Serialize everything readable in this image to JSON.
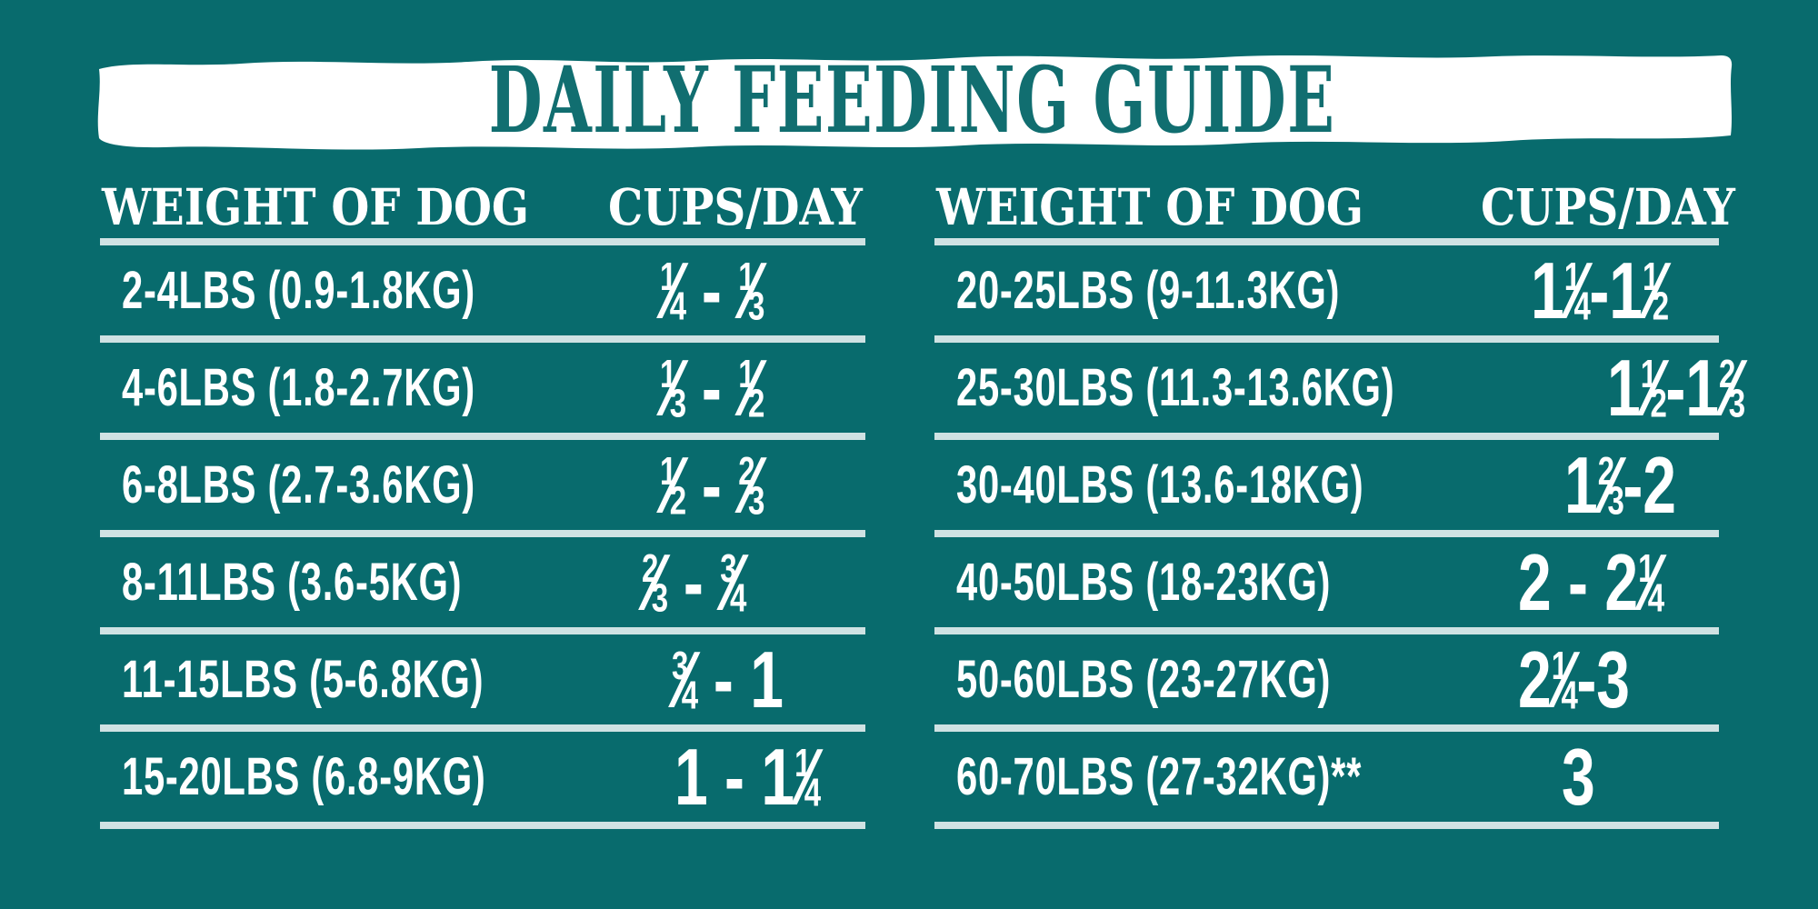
{
  "page": {
    "colors": {
      "bg": "#086b6d",
      "banner": "#ffffff",
      "title": "#116e70",
      "divider": "#cfe2e3",
      "text": "#ffffff"
    }
  },
  "banner": {
    "title": "DAILY FEEDING GUIDE"
  },
  "tables": {
    "small_dogs": {
      "weight_header": "WEIGHT OF DOG",
      "cups_header": "CUPS/DAY",
      "rows": [
        {
          "weight": "2-4LBS (0.9-1.8KG)",
          "cups": "¼ - ⅓"
        },
        {
          "weight": "4-6LBS (1.8-2.7KG)",
          "cups": "⅓ - ½"
        },
        {
          "weight": "6-8LBS (2.7-3.6KG)",
          "cups": "½ - ⅔"
        },
        {
          "weight": "8-11LBS (3.6-5KG)",
          "cups": "⅔ - ¾"
        },
        {
          "weight": "11-15LBS (5-6.8KG)",
          "cups": "¾ - 1"
        },
        {
          "weight": "15-20LBS (6.8-9KG)",
          "cups": "1 - 1¼"
        }
      ]
    },
    "large_dogs": {
      "weight_header": "WEIGHT OF DOG",
      "cups_header": "CUPS/DAY",
      "rows": [
        {
          "weight": "20-25LBS (9-11.3KG)",
          "cups": "1¼-1½"
        },
        {
          "weight": "25-30LBS (11.3-13.6KG)",
          "cups": "1½-1⅔"
        },
        {
          "weight": "30-40LBS (13.6-18KG)",
          "cups": "1⅔-2"
        },
        {
          "weight": "40-50LBS (18-23KG)",
          "cups": "2 - 2¼"
        },
        {
          "weight": "50-60LBS (23-27KG)",
          "cups": "2¼-3"
        },
        {
          "weight": "60-70LBS (27-32KG)**",
          "cups": "3"
        }
      ]
    }
  }
}
